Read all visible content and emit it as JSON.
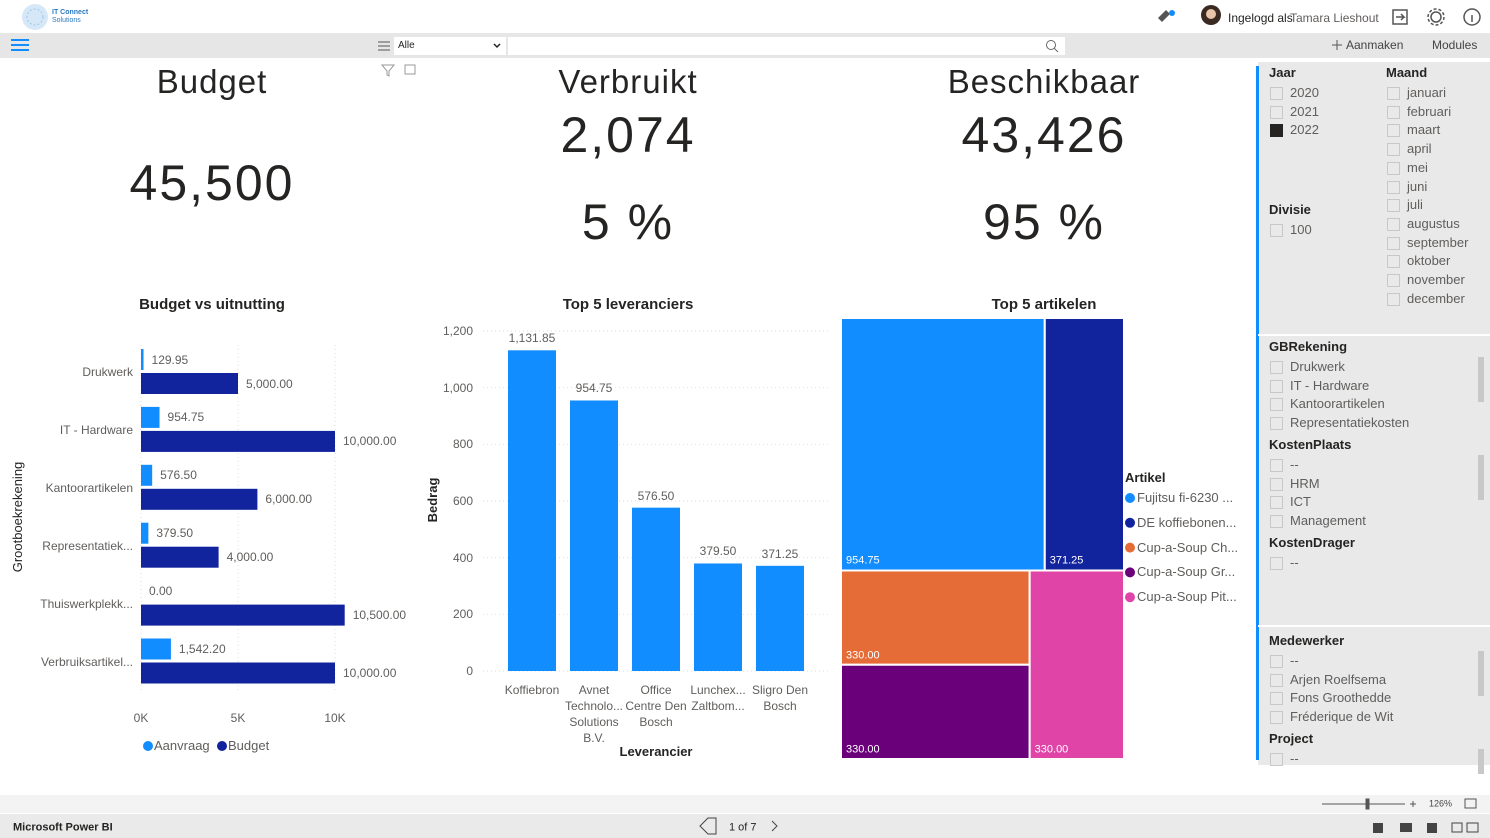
{
  "header": {
    "logo_line1": "IT Connect",
    "logo_line2": "Solutions",
    "login_prefix": "Ingelogd als",
    "user": "Tamara Lieshout"
  },
  "toolbar": {
    "filter_option": "Alle",
    "create": "Aanmaken",
    "modules": "Modules"
  },
  "kpis": [
    {
      "title": "Budget",
      "value": "45,500"
    },
    {
      "title": "Verbruikt",
      "value": "2,074",
      "percent": "5 %"
    },
    {
      "title": "Beschikbaar",
      "value": "43,426",
      "percent": "95 %"
    }
  ],
  "chart_data": [
    {
      "type": "hbar",
      "title": "Budget vs uitnutting",
      "y_label": "Grootboekrekening",
      "categories": [
        "Drukwerk",
        "IT - Hardware",
        "Kantoorartikelen",
        "Representatiek...",
        "Thuiswerkplekk...",
        "Verbruiksartikel..."
      ],
      "series": [
        {
          "name": "Aanvraag",
          "color": "#118DFF",
          "values": [
            129.95,
            954.75,
            576.5,
            379.5,
            0,
            1542.2
          ],
          "value_labels": [
            "129.95",
            "954.75",
            "576.50",
            "379.50",
            "0.00",
            "1,542.20"
          ]
        },
        {
          "name": "Budget",
          "color": "#12239E",
          "values": [
            5000,
            10000,
            6000,
            4000,
            10500,
            10000
          ],
          "value_labels": [
            "5,000.00",
            "10,000.00",
            "6,000.00",
            "4,000.00",
            "10,500.00",
            "10,000.00"
          ]
        }
      ],
      "xlim": [
        0,
        11000
      ],
      "xticks": [
        {
          "value": 0,
          "label": "0K"
        },
        {
          "value": 5000,
          "label": "5K"
        },
        {
          "value": 10000,
          "label": "10K"
        }
      ],
      "grid": true
    },
    {
      "type": "bar",
      "title": "Top 5 leveranciers",
      "x_label": "Leverancier",
      "y_label": "Bedrag",
      "categories": [
        "Koffiebron",
        "Avnet Technolo... Solutions B.V.",
        "Office Centre Den Bosch",
        "Lunchex... Zaltbom...",
        "Sligro Den Bosch"
      ],
      "values": [
        1131.85,
        954.75,
        576.5,
        379.5,
        371.25
      ],
      "value_labels": [
        "1,131.85",
        "954.75",
        "576.50",
        "379.50",
        "371.25"
      ],
      "color": "#118DFF",
      "ylim": [
        0,
        1200
      ],
      "yticks": [
        0,
        200,
        400,
        600,
        800,
        {
          "value": 1000,
          "label": "1,000"
        },
        {
          "value": 1200,
          "label": "1,200"
        }
      ],
      "grid": true
    },
    {
      "type": "treemap",
      "title": "Top 5 artikelen",
      "legend_title": "Artikel",
      "categories": [
        "Fujitsu fi-6230 ...",
        "DE koffiebonen...",
        "Cup-a-Soup Ch...",
        "Cup-a-Soup Gr...",
        "Cup-a-Soup Pit..."
      ],
      "values": [
        954.75,
        371.25,
        330,
        330,
        330
      ],
      "value_labels": [
        "954.75",
        "371.25",
        "330.00",
        "330.00",
        "330.00"
      ],
      "colors": [
        "#118DFF",
        "#12239E",
        "#E66C37",
        "#6B007B",
        "#E044A7"
      ]
    }
  ],
  "slicers": [
    {
      "title": "Jaar",
      "items": [
        "2020",
        "2021",
        "2022"
      ],
      "selected": [
        2
      ]
    },
    {
      "title": "Maand",
      "items": [
        "januari",
        "februari",
        "maart",
        "april",
        "mei",
        "juni",
        "juli",
        "augustus",
        "september",
        "oktober",
        "november",
        "december"
      ]
    },
    {
      "title": "Divisie",
      "items": [
        "100"
      ]
    },
    {
      "title": "GBRekening",
      "items": [
        "Drukwerk",
        "IT - Hardware",
        "Kantoorartikelen",
        "Representatiekosten"
      ]
    },
    {
      "title": "KostenPlaats",
      "items": [
        "--",
        "HRM",
        "ICT",
        "Management"
      ]
    },
    {
      "title": "KostenDrager",
      "items": [
        "--"
      ]
    },
    {
      "title": "Medewerker",
      "items": [
        "--",
        "Arjen Roelfsema",
        "Fons Groothedde",
        "Fréderique de Wit"
      ]
    },
    {
      "title": "Project",
      "items": [
        "--"
      ]
    }
  ],
  "footer": {
    "brand": "Microsoft Power BI",
    "page": "1 of 7",
    "zoom": "126%"
  }
}
